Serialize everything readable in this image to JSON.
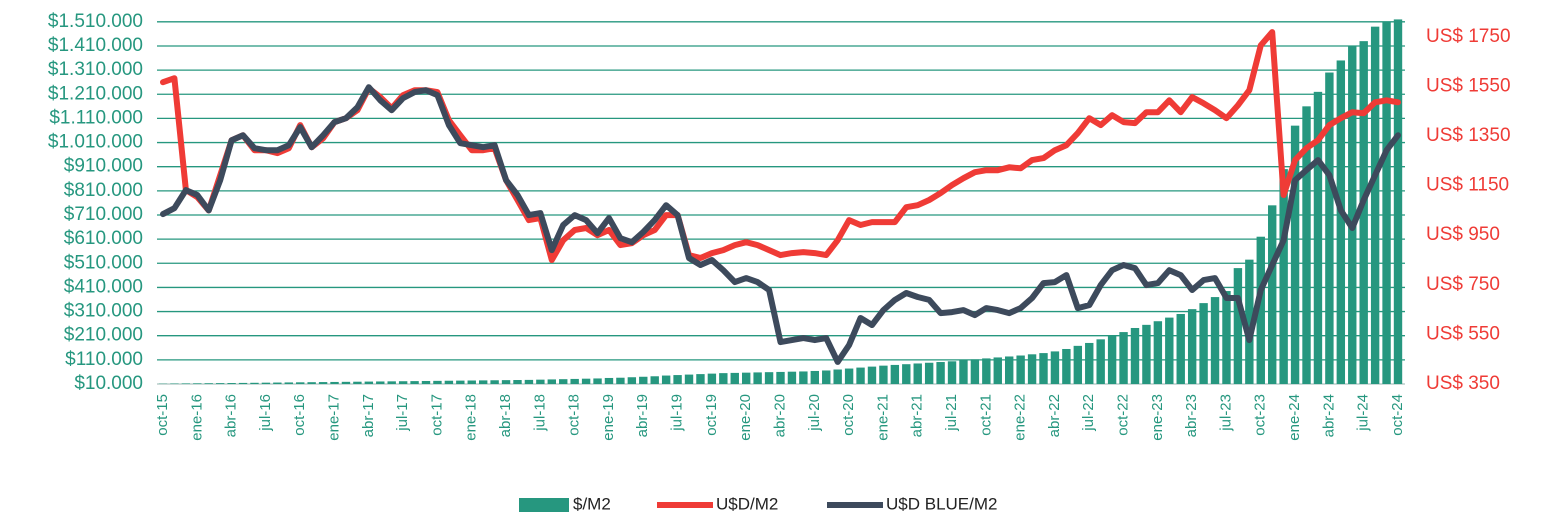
{
  "chart_data": {
    "type": "bar_line",
    "categories": [
      "oct-15",
      null,
      null,
      "ene-16",
      null,
      null,
      "abr-16",
      null,
      null,
      "jul-16",
      null,
      null,
      "oct-16",
      null,
      null,
      "ene-17",
      null,
      null,
      "abr-17",
      null,
      null,
      "jul-17",
      null,
      null,
      "oct-17",
      null,
      null,
      "ene-18",
      null,
      null,
      "abr-18",
      null,
      null,
      "jul-18",
      null,
      null,
      "oct-18",
      null,
      null,
      "ene-19",
      null,
      null,
      "abr-19",
      null,
      null,
      "jul-19",
      null,
      null,
      "oct-19",
      null,
      null,
      "ene-20",
      null,
      null,
      "abr-20",
      null,
      null,
      "jul-20",
      null,
      null,
      "oct-20",
      null,
      null,
      "ene-21",
      null,
      null,
      "abr-21",
      null,
      null,
      "jul-21",
      null,
      null,
      "oct-21",
      null,
      null,
      "ene-22",
      null,
      null,
      "abr-22",
      null,
      null,
      "jul-22",
      null,
      null,
      "oct-22",
      null,
      null,
      "ene-23",
      null,
      null,
      "abr-23",
      null,
      null,
      "jul-23",
      null,
      null,
      "oct-23",
      null,
      null,
      "ene-24",
      null,
      null,
      "abr-24",
      null,
      null,
      "jul-24",
      null,
      null,
      "oct-24"
    ],
    "series": [
      {
        "name": "$/M2",
        "type": "bar",
        "axis": "y",
        "color": "#26977f",
        "values": [
          11000,
          11500,
          12000,
          12500,
          13000,
          13500,
          14000,
          14500,
          15000,
          15500,
          16000,
          16500,
          17000,
          17500,
          18000,
          18500,
          19000,
          19500,
          20000,
          20500,
          21000,
          21500,
          22000,
          22500,
          23000,
          23500,
          24000,
          24500,
          25000,
          25500,
          26000,
          26500,
          27000,
          28000,
          29000,
          30000,
          31000,
          32000,
          33000,
          35000,
          36000,
          38000,
          40000,
          42000,
          45000,
          47000,
          49000,
          51000,
          53000,
          55000,
          56000,
          57000,
          58000,
          59000,
          60000,
          61000,
          62000,
          64000,
          66000,
          70000,
          74000,
          78000,
          82000,
          86000,
          89000,
          92000,
          95000,
          98000,
          101000,
          104000,
          108000,
          112000,
          116000,
          120000,
          124000,
          128000,
          133000,
          138000,
          145000,
          155000,
          168000,
          180000,
          195000,
          210000,
          225000,
          242000,
          255000,
          270000,
          285000,
          300000,
          320000,
          345000,
          370000,
          395000,
          490000,
          525000,
          620000,
          750000,
          900000,
          1080000,
          1160000,
          1220000,
          1300000,
          1350000,
          1410000,
          1430000,
          1490000,
          1510000,
          1520000
        ]
      },
      {
        "name": "U$D/M2",
        "type": "line",
        "axis": "y2",
        "color": "#ef3b36",
        "values": [
          1567,
          1583,
          1132,
          1104,
          1050,
          1192,
          1333,
          1353,
          1293,
          1293,
          1281,
          1301,
          1394,
          1305,
          1341,
          1406,
          1422,
          1454,
          1543,
          1507,
          1462,
          1515,
          1535,
          1535,
          1527,
          1414,
          1353,
          1293,
          1293,
          1301,
          1172,
          1092,
          1011,
          1019,
          850,
          930,
          971,
          979,
          950,
          971,
          910,
          918,
          950,
          971,
          1031,
          1031,
          870,
          858,
          878,
          890,
          910,
          922,
          910,
          890,
          870,
          878,
          882,
          878,
          870,
          930,
          1011,
          991,
          1003,
          1003,
          1003,
          1063,
          1071,
          1092,
          1120,
          1152,
          1180,
          1204,
          1212,
          1212,
          1224,
          1220,
          1253,
          1261,
          1293,
          1313,
          1362,
          1422,
          1394,
          1434,
          1406,
          1402,
          1446,
          1446,
          1494,
          1446,
          1507,
          1482,
          1454,
          1422,
          1474,
          1535,
          1716,
          1769,
          1112,
          1253,
          1301,
          1333,
          1394,
          1422,
          1446,
          1442,
          1486,
          1494,
          1486
        ]
      },
      {
        "name": "U$D BLUE/M2",
        "type": "line",
        "axis": "y2",
        "color": "#3d4a5c",
        "values": [
          1035,
          1059,
          1132,
          1112,
          1050,
          1172,
          1333,
          1353,
          1301,
          1293,
          1293,
          1313,
          1386,
          1305,
          1353,
          1406,
          1422,
          1466,
          1547,
          1494,
          1454,
          1503,
          1527,
          1535,
          1515,
          1394,
          1321,
          1313,
          1305,
          1313,
          1172,
          1112,
          1031,
          1039,
          890,
          991,
          1031,
          1011,
          958,
          1019,
          938,
          922,
          963,
          1011,
          1071,
          1031,
          858,
          830,
          850,
          809,
          761,
          777,
          761,
          729,
          519,
          527,
          535,
          527,
          535,
          439,
          507,
          616,
          588,
          648,
          689,
          717,
          701,
          689,
          636,
          640,
          648,
          628,
          656,
          648,
          636,
          656,
          697,
          757,
          761,
          789,
          656,
          668,
          749,
          809,
          830,
          817,
          749,
          757,
          809,
          789,
          729,
          769,
          777,
          697,
          697,
          527,
          729,
          830,
          930,
          1172,
          1213,
          1253,
          1192,
          1051,
          979,
          1092,
          1192,
          1293,
          1353
        ]
      }
    ],
    "ylim": [
      10000,
      1530000
    ],
    "yticks": [
      {
        "value": 10000,
        "label": "$10.000"
      },
      {
        "value": 110000,
        "label": "$110.000"
      },
      {
        "value": 210000,
        "label": "$210.000"
      },
      {
        "value": 310000,
        "label": "$310.000"
      },
      {
        "value": 410000,
        "label": "$410.000"
      },
      {
        "value": 510000,
        "label": "$510.000"
      },
      {
        "value": 610000,
        "label": "$610.000"
      },
      {
        "value": 710000,
        "label": "$710.000"
      },
      {
        "value": 810000,
        "label": "$810.000"
      },
      {
        "value": 910000,
        "label": "$910.000"
      },
      {
        "value": 1010000,
        "label": "$1.010.000"
      },
      {
        "value": 1110000,
        "label": "$1.110.000"
      },
      {
        "value": 1210000,
        "label": "$1.210.000"
      },
      {
        "value": 1310000,
        "label": "$1.310.000"
      },
      {
        "value": 1410000,
        "label": "$1.410.000"
      },
      {
        "value": 1510000,
        "label": "$1.510.000"
      }
    ],
    "y2lim": [
      350,
      1830
    ],
    "y2ticks": [
      {
        "value": 350,
        "label": "US$ 350"
      },
      {
        "value": 550,
        "label": "US$ 550"
      },
      {
        "value": 750,
        "label": "US$ 750"
      },
      {
        "value": 950,
        "label": "US$ 950"
      },
      {
        "value": 1150,
        "label": "US$ 1150"
      },
      {
        "value": 1350,
        "label": "US$ 1350"
      },
      {
        "value": 1550,
        "label": "US$ 1550"
      },
      {
        "value": 1750,
        "label": "US$ 1750"
      }
    ],
    "grid": true,
    "legend": "bottom"
  }
}
